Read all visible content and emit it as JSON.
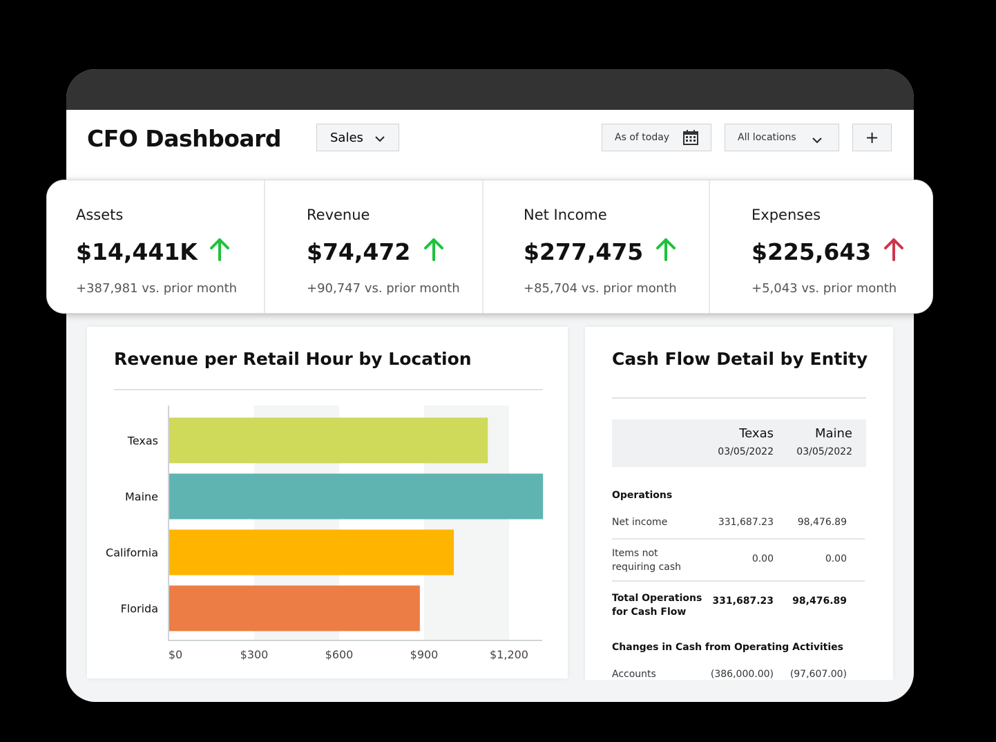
{
  "header": {
    "title": "CFO Dashboard",
    "view_select": "Sales",
    "date_filter": "As of today",
    "location_filter": "All locations",
    "add_label": "+"
  },
  "kpis": [
    {
      "label": "Assets",
      "value": "$14,441K",
      "delta": "+387,981 vs. prior month",
      "trend": "up",
      "color": "#1ec23a"
    },
    {
      "label": "Revenue",
      "value": "$74,472",
      "delta": "+90,747 vs. prior month",
      "trend": "up",
      "color": "#1ec23a"
    },
    {
      "label": "Net Income",
      "value": "$277,475",
      "delta": "+85,704 vs. prior month",
      "trend": "up",
      "color": "#1ec23a"
    },
    {
      "label": "Expenses",
      "value": "$225,643",
      "delta": "+5,043 vs. prior month",
      "trend": "up",
      "color": "#d0344c"
    }
  ],
  "revenue_panel": {
    "title": "Revenue per Retail Hour by Location"
  },
  "chart_data": {
    "type": "bar",
    "orientation": "horizontal",
    "title": "Revenue per Retail Hour by Location",
    "categories": [
      "Texas",
      "Maine",
      "California",
      "Florida"
    ],
    "values": [
      1125,
      1320,
      1005,
      885
    ],
    "colors": [
      "#cfd95a",
      "#5fb4b2",
      "#ffb500",
      "#ec7d45"
    ],
    "x_ticks": [
      "$0",
      "$300",
      "$600",
      "$900",
      "$1,200"
    ],
    "xlim": [
      0,
      1320
    ],
    "grid": "alternating vertical bands"
  },
  "cash_flow": {
    "title": "Cash Flow Detail by Entity",
    "columns": [
      {
        "entity": "Texas",
        "date": "03/05/2022"
      },
      {
        "entity": "Maine",
        "date": "03/05/2022"
      }
    ],
    "section1": "Operations",
    "rows": [
      {
        "label": "Net income",
        "texas": "331,687.23",
        "maine": "98,476.89"
      },
      {
        "label": "Items not requiring cash",
        "texas": "0.00",
        "maine": "0.00"
      }
    ],
    "total": {
      "label": "Total Operations for Cash Flow",
      "texas": "331,687.23",
      "maine": "98,476.89"
    },
    "section2": "Changes in Cash from Operating Activities",
    "partial_row": {
      "label": "Accounts",
      "texas": "(386,000.00)",
      "maine": "(97,607.00)"
    }
  }
}
